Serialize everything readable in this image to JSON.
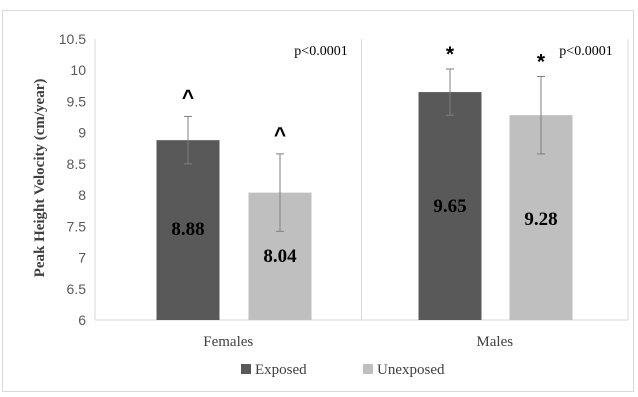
{
  "chart_data": {
    "type": "bar",
    "categories": [
      "Females",
      "Males"
    ],
    "series": [
      {
        "name": "Exposed",
        "color": "#595959",
        "values": [
          8.88,
          9.65
        ],
        "error": [
          0.38,
          0.37
        ],
        "labels": [
          "8.88",
          "9.65"
        ]
      },
      {
        "name": "Unexposed",
        "color": "#bfbfbf",
        "values": [
          8.04,
          9.28
        ],
        "error": [
          0.62,
          0.62
        ],
        "labels": [
          "8.04",
          "9.28"
        ]
      }
    ],
    "ylabel": "Peak Height Velocity (cm/year)",
    "xlabel": "",
    "ylim": [
      6,
      10.5
    ],
    "yticks": [
      "6",
      "6.5",
      "7",
      "7.5",
      "8",
      "8.5",
      "9",
      "9.5",
      "10",
      "10.5"
    ],
    "grid": "vertical category separators",
    "legend_position": "bottom",
    "annotations": {
      "markers": [
        [
          "^",
          "^"
        ],
        [
          "*",
          "*"
        ]
      ],
      "pvalues": [
        "p<0.0001",
        "p<0.0001"
      ]
    }
  }
}
